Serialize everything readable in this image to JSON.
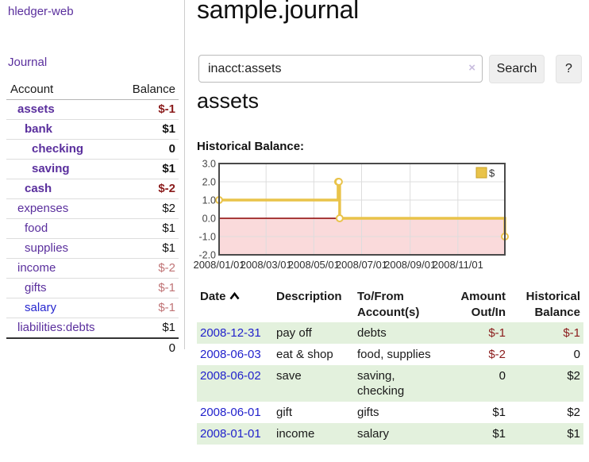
{
  "app": {
    "brand": "hledger-web",
    "nav": {
      "journal": "Journal"
    }
  },
  "colors": {
    "link_purple": "#5a2f9d",
    "link_blue": "#2626cf",
    "date_link_blue": "#2222cc",
    "negative_strong": "#8b1c1c",
    "negative_soft": "#c07476",
    "row_shade_green": "#e3f1dd",
    "series_gold": "#e9c34a",
    "negative_region_pink": "#fadadb",
    "zero_line_red": "#8b0000"
  },
  "sidebar": {
    "header": {
      "account": "Account",
      "balance": "Balance"
    },
    "accounts": [
      {
        "name": "assets",
        "indent": 1,
        "bold": true,
        "link_color": "purple",
        "balance": "$-1",
        "balance_tone": "neg-strong"
      },
      {
        "name": "bank",
        "indent": 2,
        "bold": true,
        "link_color": "purple",
        "balance": "$1",
        "balance_tone": "plain"
      },
      {
        "name": "checking",
        "indent": 3,
        "bold": true,
        "link_color": "purple",
        "balance": "0",
        "balance_tone": "plain"
      },
      {
        "name": "saving",
        "indent": 3,
        "bold": true,
        "link_color": "purple",
        "balance": "$1",
        "balance_tone": "plain"
      },
      {
        "name": "cash",
        "indent": 2,
        "bold": true,
        "link_color": "purple",
        "balance": "$-2",
        "balance_tone": "neg-strong"
      },
      {
        "name": "expenses",
        "indent": 1,
        "bold": false,
        "link_color": "purple",
        "balance": "$2",
        "balance_tone": "plain"
      },
      {
        "name": "food",
        "indent": 2,
        "bold": false,
        "link_color": "purple",
        "balance": "$1",
        "balance_tone": "plain"
      },
      {
        "name": "supplies",
        "indent": 2,
        "bold": false,
        "link_color": "purple",
        "balance": "$1",
        "balance_tone": "plain"
      },
      {
        "name": "income",
        "indent": 1,
        "bold": false,
        "link_color": "purple",
        "balance": "$-2",
        "balance_tone": "neg-soft"
      },
      {
        "name": "gifts",
        "indent": 2,
        "bold": false,
        "link_color": "purple",
        "balance": "$-1",
        "balance_tone": "neg-soft"
      },
      {
        "name": "salary",
        "indent": 2,
        "bold": false,
        "link_color": "blue",
        "balance": "$-1",
        "balance_tone": "neg-soft"
      },
      {
        "name": "liabilities:debts",
        "indent": 1,
        "bold": false,
        "link_color": "purple",
        "balance": "$1",
        "balance_tone": "plain"
      }
    ],
    "total": "0"
  },
  "header": {
    "title": "sample.journal"
  },
  "search": {
    "value": "inacct:assets",
    "clear_icon": "×",
    "search_button": "Search",
    "help_button": "?"
  },
  "main": {
    "account_title": "assets",
    "chart_label": "Historical Balance:"
  },
  "chart_data": {
    "type": "line",
    "title": "Historical Balance:",
    "step": true,
    "legend_position": "top-right",
    "grid": true,
    "ylim": [
      -2.0,
      3.0
    ],
    "y_ticks": [
      "3.0",
      "2.0",
      "1.0",
      "0.0",
      "-1.0",
      "-2.0"
    ],
    "y_tick_values": [
      3,
      2,
      1,
      0,
      -1,
      -2
    ],
    "x_ticks": [
      {
        "label": "2008/01/01",
        "day": 0
      },
      {
        "label": "2008/03/01",
        "day": 60
      },
      {
        "label": "2008/05/01",
        "day": 121
      },
      {
        "label": "2008/07/01",
        "day": 182
      },
      {
        "label": "2008/09/01",
        "day": 244
      },
      {
        "label": "2008/11/01",
        "day": 305
      }
    ],
    "xlim_days": [
      0,
      365
    ],
    "series": [
      {
        "name": "$",
        "color": "#e9c34a",
        "points": [
          {
            "date": "2008-01-01",
            "day": 0,
            "value": 1
          },
          {
            "date": "2008-06-01",
            "day": 152,
            "value": 2
          },
          {
            "date": "2008-06-02",
            "day": 153,
            "value": 2
          },
          {
            "date": "2008-06-03",
            "day": 154,
            "value": 0
          },
          {
            "date": "2008-12-31",
            "day": 365,
            "value": -1
          }
        ]
      }
    ],
    "negative_region": {
      "from": 0,
      "to": -2,
      "color": "#fadadb"
    },
    "zero_line_color": "#8b0000"
  },
  "register": {
    "headers": [
      {
        "lines": [
          "Date"
        ],
        "sorted": true,
        "num": false
      },
      {
        "lines": [
          "Description"
        ],
        "num": false
      },
      {
        "lines": [
          "To/From",
          "Account(s)"
        ],
        "num": false
      },
      {
        "lines": [
          "Amount",
          "Out/In"
        ],
        "num": true
      },
      {
        "lines": [
          "Historical",
          "Balance"
        ],
        "num": true
      }
    ],
    "rows": [
      {
        "date": "2008-12-31",
        "description": "pay off",
        "accounts": "debts",
        "amount": "$-1",
        "amount_tone": "neg-strong",
        "balance": "$-1",
        "balance_tone": "neg-strong",
        "shaded": true
      },
      {
        "date": "2008-06-03",
        "description": "eat & shop",
        "accounts": "food, supplies",
        "amount": "$-2",
        "amount_tone": "neg-strong",
        "balance": "0",
        "balance_tone": "plain",
        "shaded": false
      },
      {
        "date": "2008-06-02",
        "description": "save",
        "accounts": "saving, checking",
        "amount": "0",
        "amount_tone": "plain",
        "balance": "$2",
        "balance_tone": "plain",
        "shaded": true
      },
      {
        "date": "2008-06-01",
        "description": "gift",
        "accounts": "gifts",
        "amount": "$1",
        "amount_tone": "plain",
        "balance": "$2",
        "balance_tone": "plain",
        "shaded": false
      },
      {
        "date": "2008-01-01",
        "description": "income",
        "accounts": "salary",
        "amount": "$1",
        "amount_tone": "plain",
        "balance": "$1",
        "balance_tone": "plain",
        "shaded": true
      }
    ]
  }
}
